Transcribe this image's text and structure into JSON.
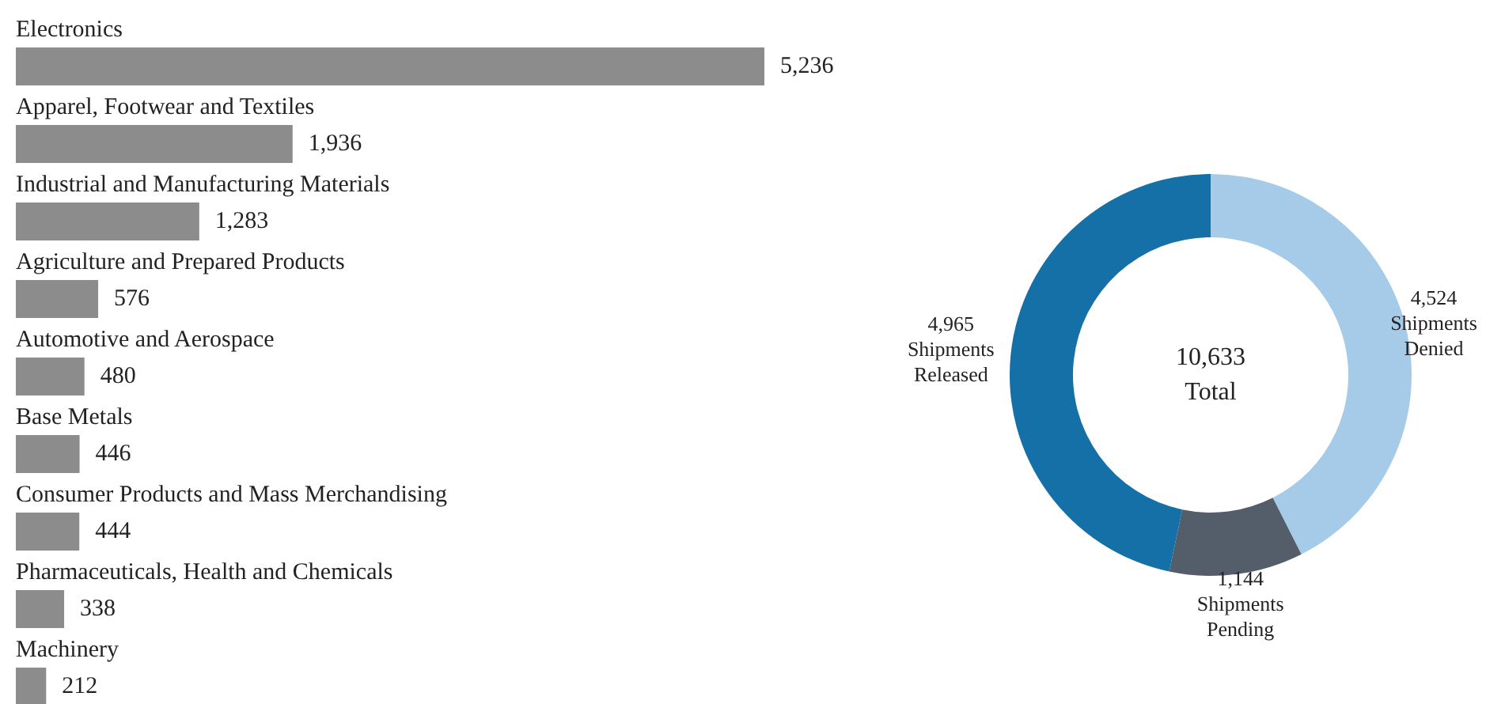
{
  "chart_data": [
    {
      "type": "bar",
      "orientation": "horizontal",
      "color": "#8c8c8c",
      "value_labels": [
        "5,236",
        "1,936",
        "1,283",
        "576",
        "480",
        "446",
        "444",
        "338",
        "212"
      ],
      "categories": [
        "Electronics",
        "Apparel, Footwear and Textiles",
        "Industrial and Manufacturing Materials",
        "Agriculture and Prepared Products",
        "Automotive and Aerospace",
        "Base Metals",
        "Consumer Products and Mass Merchandising",
        "Pharmaceuticals, Health and Chemicals",
        "Machinery"
      ],
      "values": [
        5236,
        1936,
        1283,
        576,
        480,
        446,
        444,
        338,
        212
      ]
    },
    {
      "type": "donut",
      "value_labels": [
        "4,524",
        "1,144",
        "4,965"
      ],
      "categories": [
        "Shipments Denied",
        "Shipments Pending",
        "Shipments Released"
      ],
      "values": [
        4524,
        1144,
        4965
      ],
      "colors": [
        "#a6cbe8",
        "#545d6a",
        "#1570a8"
      ],
      "annotations": [
        "10,633",
        "Total"
      ]
    }
  ]
}
